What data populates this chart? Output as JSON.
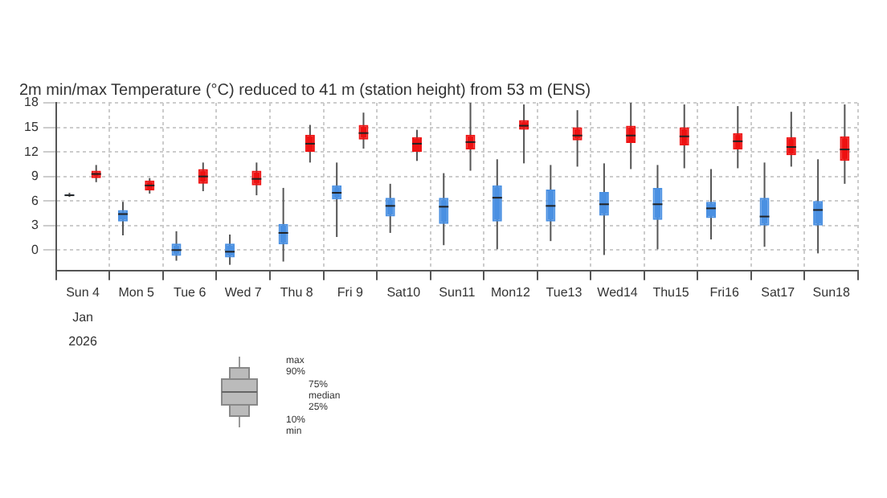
{
  "chart_data": {
    "type": "box",
    "title": "2m min/max Temperature (°C) reduced to 41 m (station height) from 53 m (ENS)",
    "categories": [
      "Sun 4",
      "Mon 5",
      "Tue 6",
      "Wed 7",
      "Thu 8",
      "Fri 9",
      "Sat10",
      "Sun11",
      "Mon12",
      "Tue13",
      "Wed14",
      "Thu15",
      "Fri16",
      "Sat17",
      "Sun18"
    ],
    "series": [
      {
        "color": "#4a90e2",
        "boxes": [
          {
            "low": 6.5,
            "q1": 6.6,
            "median": 6.7,
            "q3": 6.8,
            "high": 7.0
          },
          {
            "low": 1.8,
            "q1": 3.5,
            "median": 4.4,
            "q3": 4.9,
            "high": 5.9
          },
          {
            "low": -1.3,
            "q1": -0.7,
            "median": 0,
            "q3": 0.8,
            "high": 2.3
          },
          {
            "low": -1.8,
            "q1": -0.9,
            "median": -0.2,
            "q3": 0.8,
            "high": 1.9
          },
          {
            "low": -1.4,
            "q1": 0.7,
            "median": 2.1,
            "q3": 3.2,
            "high": 7.6
          },
          {
            "low": 1.6,
            "q1": 6.2,
            "median": 7.0,
            "q3": 7.9,
            "high": 10.7
          },
          {
            "low": 2.1,
            "q1": 4.1,
            "median": 5.4,
            "q3": 6.4,
            "high": 8.1
          },
          {
            "low": 0.6,
            "q1": 3.2,
            "median": 5.3,
            "q3": 6.4,
            "high": 9.4
          },
          {
            "low": 0.1,
            "q1": 3.5,
            "median": 6.4,
            "q3": 7.9,
            "high": 11.1
          },
          {
            "low": 1.1,
            "q1": 3.5,
            "median": 5.4,
            "q3": 7.4,
            "high": 10.4
          },
          {
            "low": -0.6,
            "q1": 4.2,
            "median": 5.6,
            "q3": 7.1,
            "high": 10.6
          },
          {
            "low": 0.1,
            "q1": 3.7,
            "median": 5.6,
            "q3": 7.6,
            "high": 10.4
          },
          {
            "low": 1.3,
            "q1": 3.9,
            "median": 5.1,
            "q3": 5.9,
            "high": 9.9
          },
          {
            "low": 0.4,
            "q1": 3.0,
            "median": 4.1,
            "q3": 6.4,
            "high": 10.7
          },
          {
            "low": -0.4,
            "q1": 3.0,
            "median": 4.9,
            "q3": 6.0,
            "high": 11.1
          }
        ]
      },
      {
        "color": "#ee1111",
        "boxes": [
          {
            "low": 8.3,
            "q1": 8.8,
            "median": 9.3,
            "q3": 9.7,
            "high": 10.4
          },
          {
            "low": 6.9,
            "q1": 7.3,
            "median": 7.9,
            "q3": 8.5,
            "high": 8.8
          },
          {
            "low": 7.2,
            "q1": 8.1,
            "median": 9.0,
            "q3": 9.9,
            "high": 10.7
          },
          {
            "low": 6.7,
            "q1": 7.9,
            "median": 8.7,
            "q3": 9.7,
            "high": 10.7
          },
          {
            "low": 10.7,
            "q1": 12.0,
            "median": 13.0,
            "q3": 14.1,
            "high": 15.3
          },
          {
            "low": 12.4,
            "q1": 13.5,
            "median": 14.3,
            "q3": 15.3,
            "high": 16.8
          },
          {
            "low": 10.9,
            "q1": 12.0,
            "median": 13.0,
            "q3": 13.8,
            "high": 14.7
          },
          {
            "low": 9.7,
            "q1": 12.3,
            "median": 13.2,
            "q3": 14.1,
            "high": 18.0
          },
          {
            "low": 10.6,
            "q1": 14.7,
            "median": 15.2,
            "q3": 15.9,
            "high": 17.8
          },
          {
            "low": 10.2,
            "q1": 13.4,
            "median": 14.0,
            "q3": 15.0,
            "high": 17.1
          },
          {
            "low": 9.9,
            "q1": 13.1,
            "median": 14.0,
            "q3": 15.2,
            "high": 18.0
          },
          {
            "low": 10.0,
            "q1": 12.8,
            "median": 13.9,
            "q3": 15.0,
            "high": 17.8
          },
          {
            "low": 10.0,
            "q1": 12.3,
            "median": 13.3,
            "q3": 14.3,
            "high": 17.6
          },
          {
            "low": 10.2,
            "q1": 11.6,
            "median": 12.6,
            "q3": 13.8,
            "high": 16.9
          },
          {
            "low": 8.1,
            "q1": 10.9,
            "median": 12.3,
            "q3": 13.9,
            "high": 17.8
          }
        ]
      }
    ],
    "ylim": [
      -2.5,
      18
    ],
    "yticks": [
      0,
      3,
      6,
      9,
      12,
      15,
      18
    ],
    "grid": true,
    "annotations": [
      "Jan",
      "2026",
      "max",
      "90%",
      "75%",
      "median",
      "25%",
      "10%",
      "min"
    ]
  }
}
